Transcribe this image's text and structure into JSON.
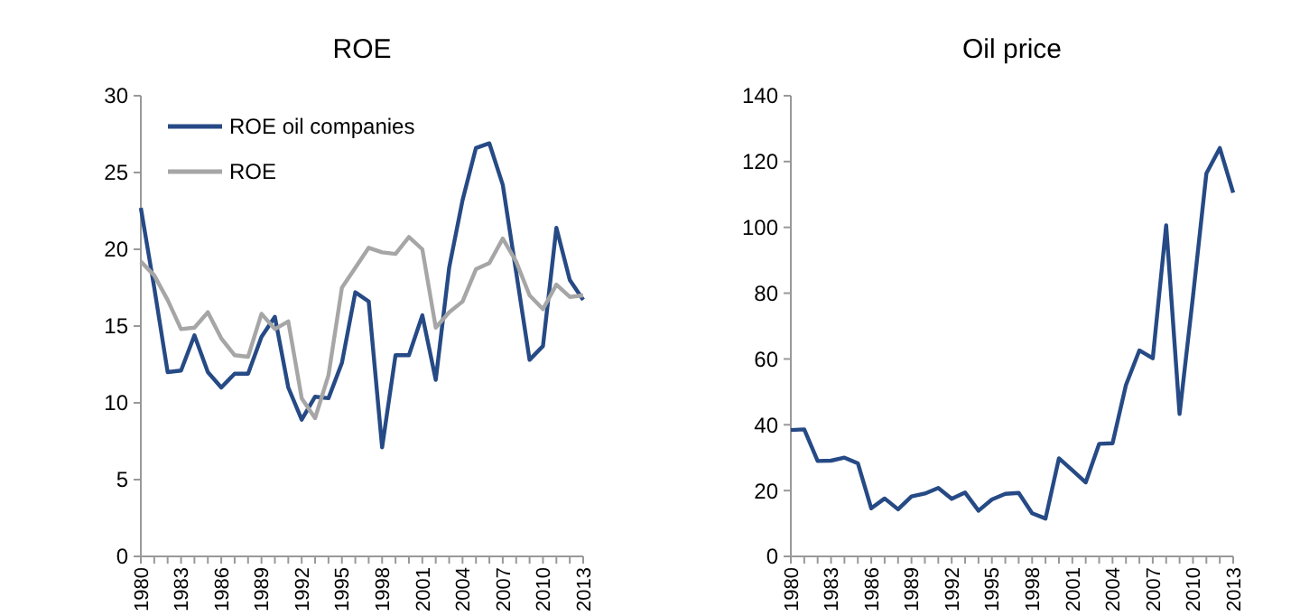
{
  "chart_data": [
    {
      "type": "line",
      "title": "ROE",
      "categories": [
        "1980",
        null,
        null,
        "1983",
        null,
        null,
        "1986",
        null,
        null,
        "1989",
        null,
        null,
        "1992",
        null,
        null,
        "1995",
        null,
        null,
        "1998",
        null,
        null,
        "2001",
        null,
        null,
        "2004",
        null,
        null,
        "2007",
        null,
        null,
        "2010",
        null,
        null,
        "2013"
      ],
      "series": [
        {
          "name": "ROE oil companies",
          "color": "#264a85",
          "values": [
            22.7,
            17.5,
            12.0,
            12.1,
            14.4,
            12.0,
            11.0,
            11.9,
            11.9,
            14.3,
            15.6,
            11.0,
            8.9,
            10.4,
            10.3,
            12.6,
            17.2,
            16.6,
            7.1,
            13.1,
            13.1,
            15.7,
            11.5,
            18.8,
            23.2,
            26.6,
            26.9,
            24.2,
            18.5,
            12.8,
            13.7,
            21.4,
            18.0,
            16.7
          ]
        },
        {
          "name": "ROE",
          "color": "#a6a6a6",
          "values": [
            19.2,
            18.3,
            16.7,
            14.8,
            14.9,
            15.9,
            14.2,
            13.1,
            13.0,
            15.8,
            14.8,
            15.3,
            10.3,
            9.0,
            11.8,
            17.5,
            18.8,
            20.1,
            19.8,
            19.7,
            20.8,
            20.0,
            14.9,
            15.9,
            16.6,
            18.7,
            19.1,
            20.7,
            19.2,
            17.0,
            16.1,
            17.7,
            16.9,
            17.0
          ]
        }
      ],
      "ylim": [
        0,
        30
      ],
      "yticks": [
        0,
        5,
        10,
        15,
        20,
        25,
        30
      ],
      "legend": "top left",
      "grid": false
    },
    {
      "type": "line",
      "title": "Oil price",
      "categories": [
        "1980",
        null,
        null,
        "1983",
        null,
        null,
        "1986",
        null,
        null,
        "1989",
        null,
        null,
        "1992",
        null,
        null,
        "1995",
        null,
        null,
        "1998",
        null,
        null,
        "2001",
        null,
        null,
        "2004",
        null,
        null,
        "2007",
        null,
        null,
        "2010",
        null,
        null,
        "2013"
      ],
      "series": [
        {
          "color": "#264a85",
          "values": [
            38.4,
            38.6,
            29.0,
            29.1,
            30.0,
            28.3,
            14.6,
            17.6,
            14.3,
            18.2,
            19.1,
            20.8,
            17.5,
            19.4,
            13.9,
            17.3,
            19.0,
            19.3,
            13.1,
            11.5,
            29.8,
            26.2,
            22.5,
            34.2,
            34.4,
            52.1,
            62.6,
            60.2,
            100.6,
            43.3,
            79.0,
            116.4,
            124.1,
            110.5
          ]
        }
      ],
      "ylim": [
        0,
        140
      ],
      "yticks": [
        0,
        20,
        40,
        60,
        80,
        100,
        120,
        140
      ],
      "legend": false,
      "grid": false
    }
  ]
}
